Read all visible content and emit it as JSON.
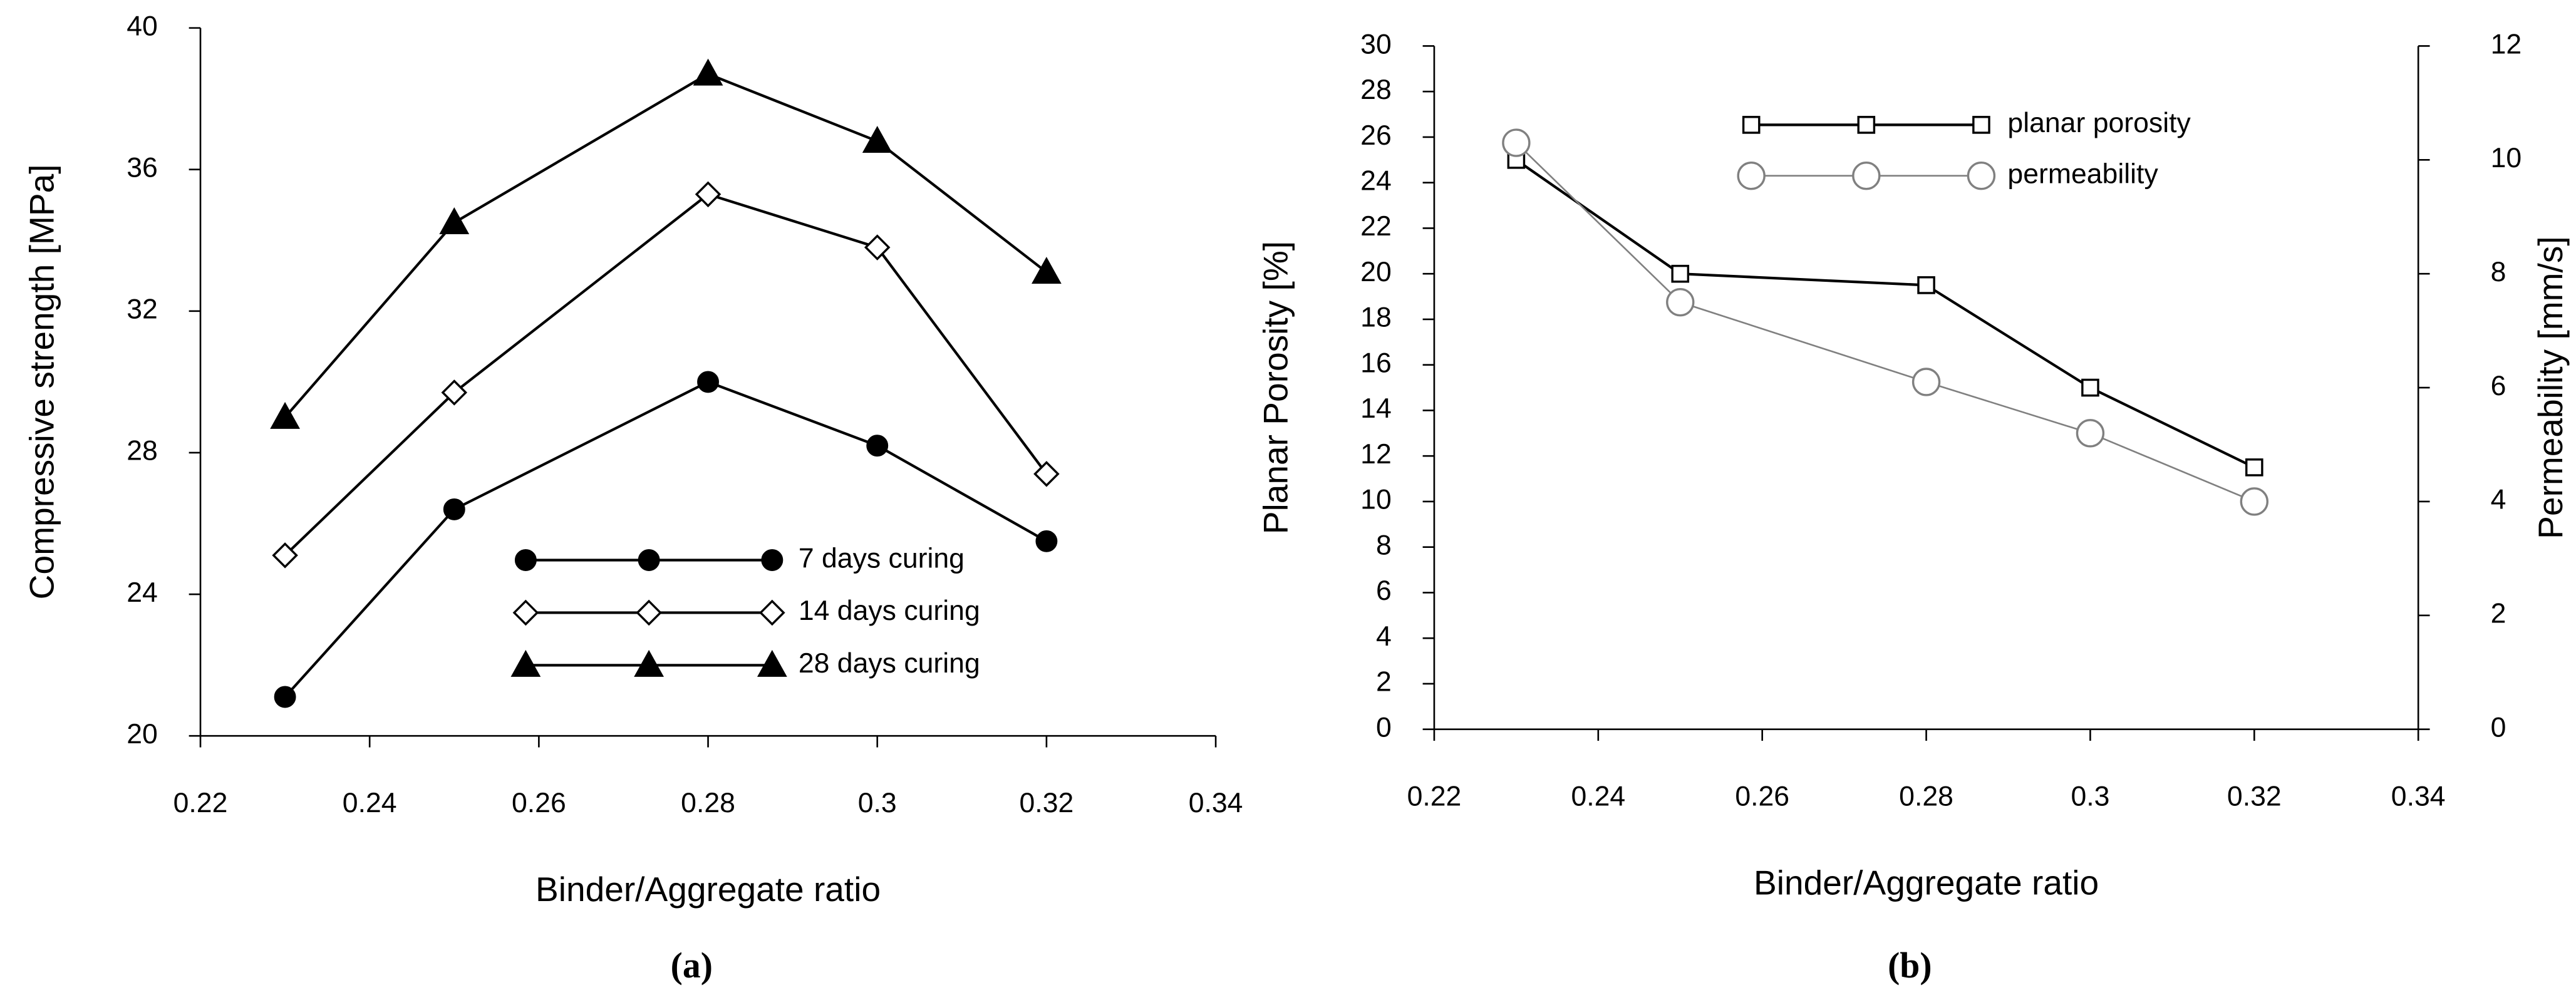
{
  "chart_data": [
    {
      "type": "line",
      "caption": "(a)",
      "xlabel": "Binder/Aggregate ratio",
      "ylabel": "Compressive strength [MPa]",
      "x": [
        0.23,
        0.25,
        0.28,
        0.3,
        0.32
      ],
      "series": [
        {
          "name": "7 days curing",
          "color": "#000000",
          "marker": "circle",
          "marker_fill": "#000000",
          "values": [
            21.1,
            26.4,
            30.0,
            28.2,
            25.5
          ]
        },
        {
          "name": "14 days curing",
          "color": "#000000",
          "marker": "diamond",
          "marker_fill": "#ffffff",
          "values": [
            25.1,
            29.7,
            35.3,
            33.8,
            27.4
          ]
        },
        {
          "name": "28 days curing",
          "color": "#000000",
          "marker": "triangle",
          "marker_fill": "#000000",
          "values": [
            29.0,
            34.5,
            38.7,
            36.8,
            33.1
          ]
        }
      ],
      "xlim": [
        0.22,
        0.34
      ],
      "xticks": [
        0.22,
        0.24,
        0.26,
        0.28,
        0.3,
        0.32,
        0.34
      ],
      "ylim": [
        20,
        40
      ],
      "yticks": [
        20,
        24,
        28,
        32,
        36,
        40
      ],
      "grid": false,
      "legend": "lower-center"
    },
    {
      "type": "line",
      "caption": "(b)",
      "xlabel": "Binder/Aggregate ratio",
      "ylabel": "Planar Porosity [%]",
      "y2label": "Permeability [mm/s]",
      "x": [
        0.23,
        0.25,
        0.28,
        0.3,
        0.32
      ],
      "series": [
        {
          "name": "planar porosity",
          "color": "#000000",
          "marker": "square",
          "marker_fill": "#ffffff",
          "values": [
            25,
            20,
            19.5,
            15,
            11.5
          ]
        },
        {
          "name": "permeability",
          "color": "#808080",
          "marker": "circle",
          "marker_fill": "#ffffff",
          "axis": "y2",
          "values": [
            10.3,
            7.5,
            6.1,
            5.2,
            4.0
          ]
        }
      ],
      "xlim": [
        0.22,
        0.34
      ],
      "xticks": [
        0.22,
        0.24,
        0.26,
        0.28,
        0.3,
        0.32,
        0.34
      ],
      "ylim": [
        0,
        30
      ],
      "yticks": [
        0,
        2,
        4,
        6,
        8,
        10,
        12,
        14,
        16,
        18,
        20,
        22,
        24,
        26,
        28,
        30
      ],
      "y2lim": [
        0,
        12
      ],
      "y2ticks": [
        0,
        2,
        4,
        6,
        8,
        10,
        12
      ],
      "grid": false,
      "legend": "upper-center"
    }
  ]
}
